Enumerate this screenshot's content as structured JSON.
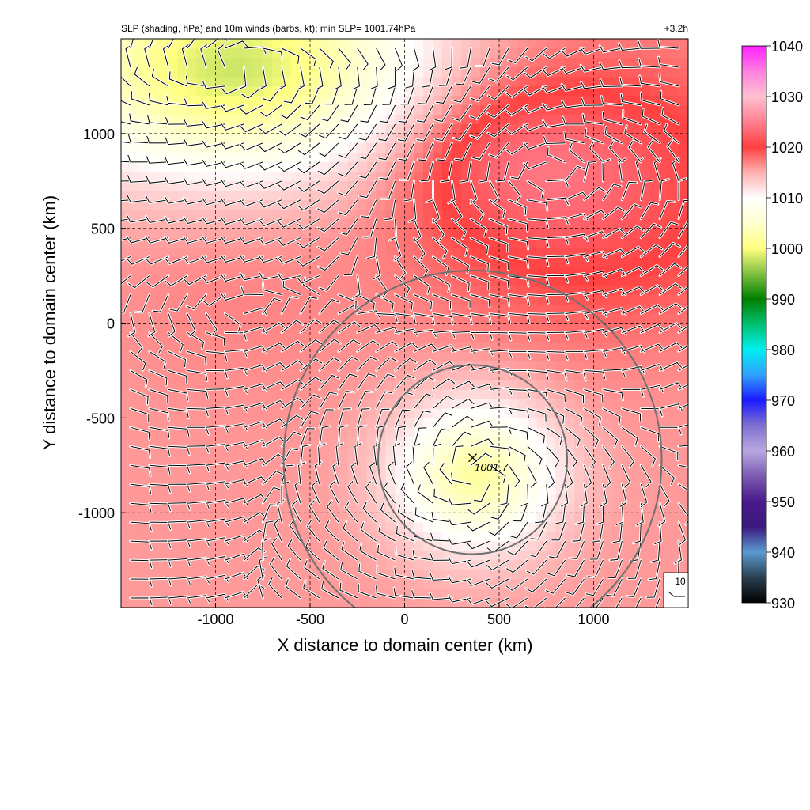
{
  "chart_data": {
    "type": "heatmap",
    "title": "SLP (shading, hPa) and 10m winds (barbs, kt); min SLP= 1001.74hPa",
    "time_label": "+3.2h",
    "xlabel": "X distance to domain center (km)",
    "ylabel": "Y distance to domain center (km)",
    "xlim": [
      -1500,
      1500
    ],
    "ylim": [
      -1500,
      1500
    ],
    "x_ticks": [
      -1000,
      -500,
      0,
      500,
      1000
    ],
    "y_ticks": [
      -1000,
      -500,
      0,
      500,
      1000
    ],
    "x_tick_labels": [
      "-1000",
      "-500",
      "0",
      "500",
      "1000"
    ],
    "y_tick_labels": [
      "-1000",
      "-500",
      "0",
      "500",
      "1000"
    ],
    "grid": true,
    "colorbar": {
      "range": [
        930,
        1040
      ],
      "ticks": [
        "1040",
        "1030",
        "1020",
        "1010",
        "1000",
        "990",
        "980",
        "970",
        "960",
        "950",
        "940",
        "930"
      ],
      "stops": [
        {
          "value": 930,
          "color": "#000000"
        },
        {
          "value": 935,
          "color": "#2a4050"
        },
        {
          "value": 940,
          "color": "#5a9ad0"
        },
        {
          "value": 945,
          "color": "#3a1a80"
        },
        {
          "value": 950,
          "color": "#4a1a8a"
        },
        {
          "value": 955,
          "color": "#7a5ab0"
        },
        {
          "value": 960,
          "color": "#b8a8e0"
        },
        {
          "value": 965,
          "color": "#8070d0"
        },
        {
          "value": 970,
          "color": "#1a1aff"
        },
        {
          "value": 975,
          "color": "#30a0ff"
        },
        {
          "value": 980,
          "color": "#00f0f0"
        },
        {
          "value": 985,
          "color": "#00c070"
        },
        {
          "value": 990,
          "color": "#008000"
        },
        {
          "value": 995,
          "color": "#80c040"
        },
        {
          "value": 1000,
          "color": "#ffff80"
        },
        {
          "value": 1005,
          "color": "#ffffd0"
        },
        {
          "value": 1010,
          "color": "#ffffff"
        },
        {
          "value": 1015,
          "color": "#ffb0b0"
        },
        {
          "value": 1020,
          "color": "#ff4040"
        },
        {
          "value": 1025,
          "color": "#ff8090"
        },
        {
          "value": 1030,
          "color": "#ffc0d0"
        },
        {
          "value": 1035,
          "color": "#ff80e0"
        },
        {
          "value": 1040,
          "color": "#ff20ff"
        }
      ]
    },
    "slp_field": {
      "background_hpa": 1016,
      "centers": [
        {
          "x": 380,
          "y": -800,
          "dp": -14,
          "rx": 420,
          "ry": 380
        },
        {
          "x": -900,
          "y": 1350,
          "dp": -18,
          "rx": 1000,
          "ry": 550
        },
        {
          "x": 1000,
          "y": 700,
          "dp": 6,
          "rx": 900,
          "ry": 700
        },
        {
          "x": 500,
          "y": 900,
          "dp": 4,
          "rx": 600,
          "ry": 400
        },
        {
          "x": -900,
          "y": 200,
          "dp": 1,
          "rx": 700,
          "ry": 600
        }
      ]
    },
    "min_slp_marker": {
      "x": 360,
      "y": -710,
      "label": "1001.7"
    },
    "range_rings": [
      {
        "center_x": 360,
        "center_y": -720,
        "radius_km": 500
      },
      {
        "center_x": 360,
        "center_y": -720,
        "radius_km": 1000
      }
    ],
    "wind_barbs": {
      "spacing_km": 100,
      "reference_label": "10",
      "reference_speed_kt": 10
    }
  }
}
